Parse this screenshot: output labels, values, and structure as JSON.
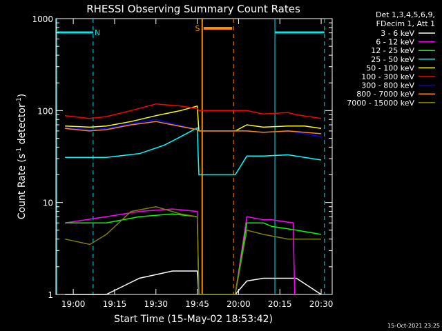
{
  "chart_data": {
    "type": "line",
    "title": "RHESSI Observing Summary Count Rates",
    "xlabel": "Start Time (15-May-02 18:53:42)",
    "ylabel_main": "Count Rate (s",
    "ylabel_sup1": "-1",
    "ylabel_mid": " detector",
    "ylabel_sup2": "-1",
    "ylabel_end": ")",
    "y_scale": "log",
    "ylim": [
      1,
      1000
    ],
    "x_ticks": [
      "19:00",
      "19:15",
      "19:30",
      "19:45",
      "20:00",
      "20:15",
      "20:30"
    ],
    "y_ticks": [
      "1",
      "10",
      "100",
      "1000"
    ],
    "legend_header": [
      "Det 1,3,4,5,6,9,",
      "FDecim 1, Att 1"
    ],
    "annotation_S": "S",
    "annotation_N": "N",
    "footer_date": "15-Oct-2021 23:25",
    "gap_marker_color": "#ff8c00",
    "night_marker_color": "#00e5ee",
    "series": [
      {
        "name": "3 - 6 keV",
        "color": "#ffffff",
        "t": [
          18.95,
          19.2,
          19.4,
          19.6,
          19.75,
          19.76,
          19.98,
          20.05,
          20.15,
          20.2,
          20.35,
          20.5
        ],
        "v": [
          1,
          1,
          1.5,
          1.8,
          1.8,
          1,
          1,
          1.4,
          1.5,
          1.5,
          1.5,
          1
        ]
      },
      {
        "name": "6 - 12 keV",
        "color": "#ff00ff",
        "t": [
          18.95,
          19.2,
          19.4,
          19.6,
          19.75,
          19.76,
          19.98,
          20.05,
          20.15,
          20.2,
          20.33,
          20.34
        ],
        "v": [
          6,
          7,
          8,
          8.5,
          8,
          1,
          1,
          7,
          6.5,
          6.5,
          6,
          1
        ]
      },
      {
        "name": "12 - 25 keV",
        "color": "#00ff00",
        "t": [
          18.95,
          19.2,
          19.4,
          19.6,
          19.75,
          19.76,
          19.98,
          20.05,
          20.15,
          20.2,
          20.35,
          20.5
        ],
        "v": [
          6,
          6,
          7,
          7.5,
          7,
          1,
          1,
          6,
          6,
          5.5,
          5,
          4.5
        ]
      },
      {
        "name": "25 - 50 keV",
        "color": "#00ffff",
        "t": [
          18.95,
          19.1,
          19.2,
          19.4,
          19.55,
          19.65,
          19.75,
          19.76,
          19.98,
          20.05,
          20.15,
          20.3,
          20.4,
          20.5
        ],
        "v": [
          31,
          31,
          31,
          34,
          42,
          52,
          65,
          20,
          20,
          32,
          32,
          33,
          31,
          29
        ]
      },
      {
        "name": "50 - 100 keV",
        "color": "#ffff00",
        "t": [
          18.95,
          19.1,
          19.2,
          19.35,
          19.5,
          19.65,
          19.75,
          19.76,
          19.98,
          20.05,
          20.15,
          20.3,
          20.4,
          20.5
        ],
        "v": [
          68,
          66,
          68,
          76,
          88,
          100,
          112,
          60,
          60,
          70,
          66,
          68,
          68,
          64
        ]
      },
      {
        "name": "100 - 300 keV",
        "color": "#ff0000",
        "t": [
          18.95,
          19.1,
          19.2,
          19.35,
          19.5,
          19.65,
          19.75,
          19.76,
          19.98,
          20.05,
          20.15,
          20.3,
          20.35,
          20.5
        ],
        "v": [
          88,
          82,
          86,
          100,
          118,
          112,
          105,
          100,
          100,
          100,
          92,
          95,
          90,
          82
        ]
      },
      {
        "name": "300 - 800 keV",
        "color": "#0000ff",
        "t": [
          18.95,
          19.1,
          19.2,
          19.35,
          19.5,
          19.6,
          19.75,
          19.76,
          19.98,
          20.05,
          20.15,
          20.3,
          20.4,
          20.5
        ],
        "v": [
          66,
          62,
          64,
          72,
          80,
          72,
          62,
          60,
          60,
          60,
          58,
          60,
          56,
          52
        ]
      },
      {
        "name": "800 - 7000 keV",
        "color": "#ff8c00",
        "t": [
          18.95,
          19.1,
          19.2,
          19.35,
          19.5,
          19.6,
          19.75,
          19.76,
          19.98,
          20.05,
          20.15,
          20.3,
          20.4,
          20.5
        ],
        "v": [
          64,
          60,
          62,
          70,
          76,
          70,
          62,
          60,
          60,
          60,
          58,
          60,
          58,
          56
        ]
      },
      {
        "name": "7000 - 15000 keV",
        "color": "#808000",
        "t": [
          18.95,
          19.1,
          19.2,
          19.35,
          19.5,
          19.65,
          19.75,
          19.76,
          19.98,
          20.05,
          20.15,
          20.3,
          20.4,
          20.5
        ],
        "v": [
          4,
          3.5,
          4.5,
          8,
          9,
          7.5,
          7,
          1,
          1,
          5,
          4.5,
          4,
          4,
          4
        ]
      }
    ]
  }
}
